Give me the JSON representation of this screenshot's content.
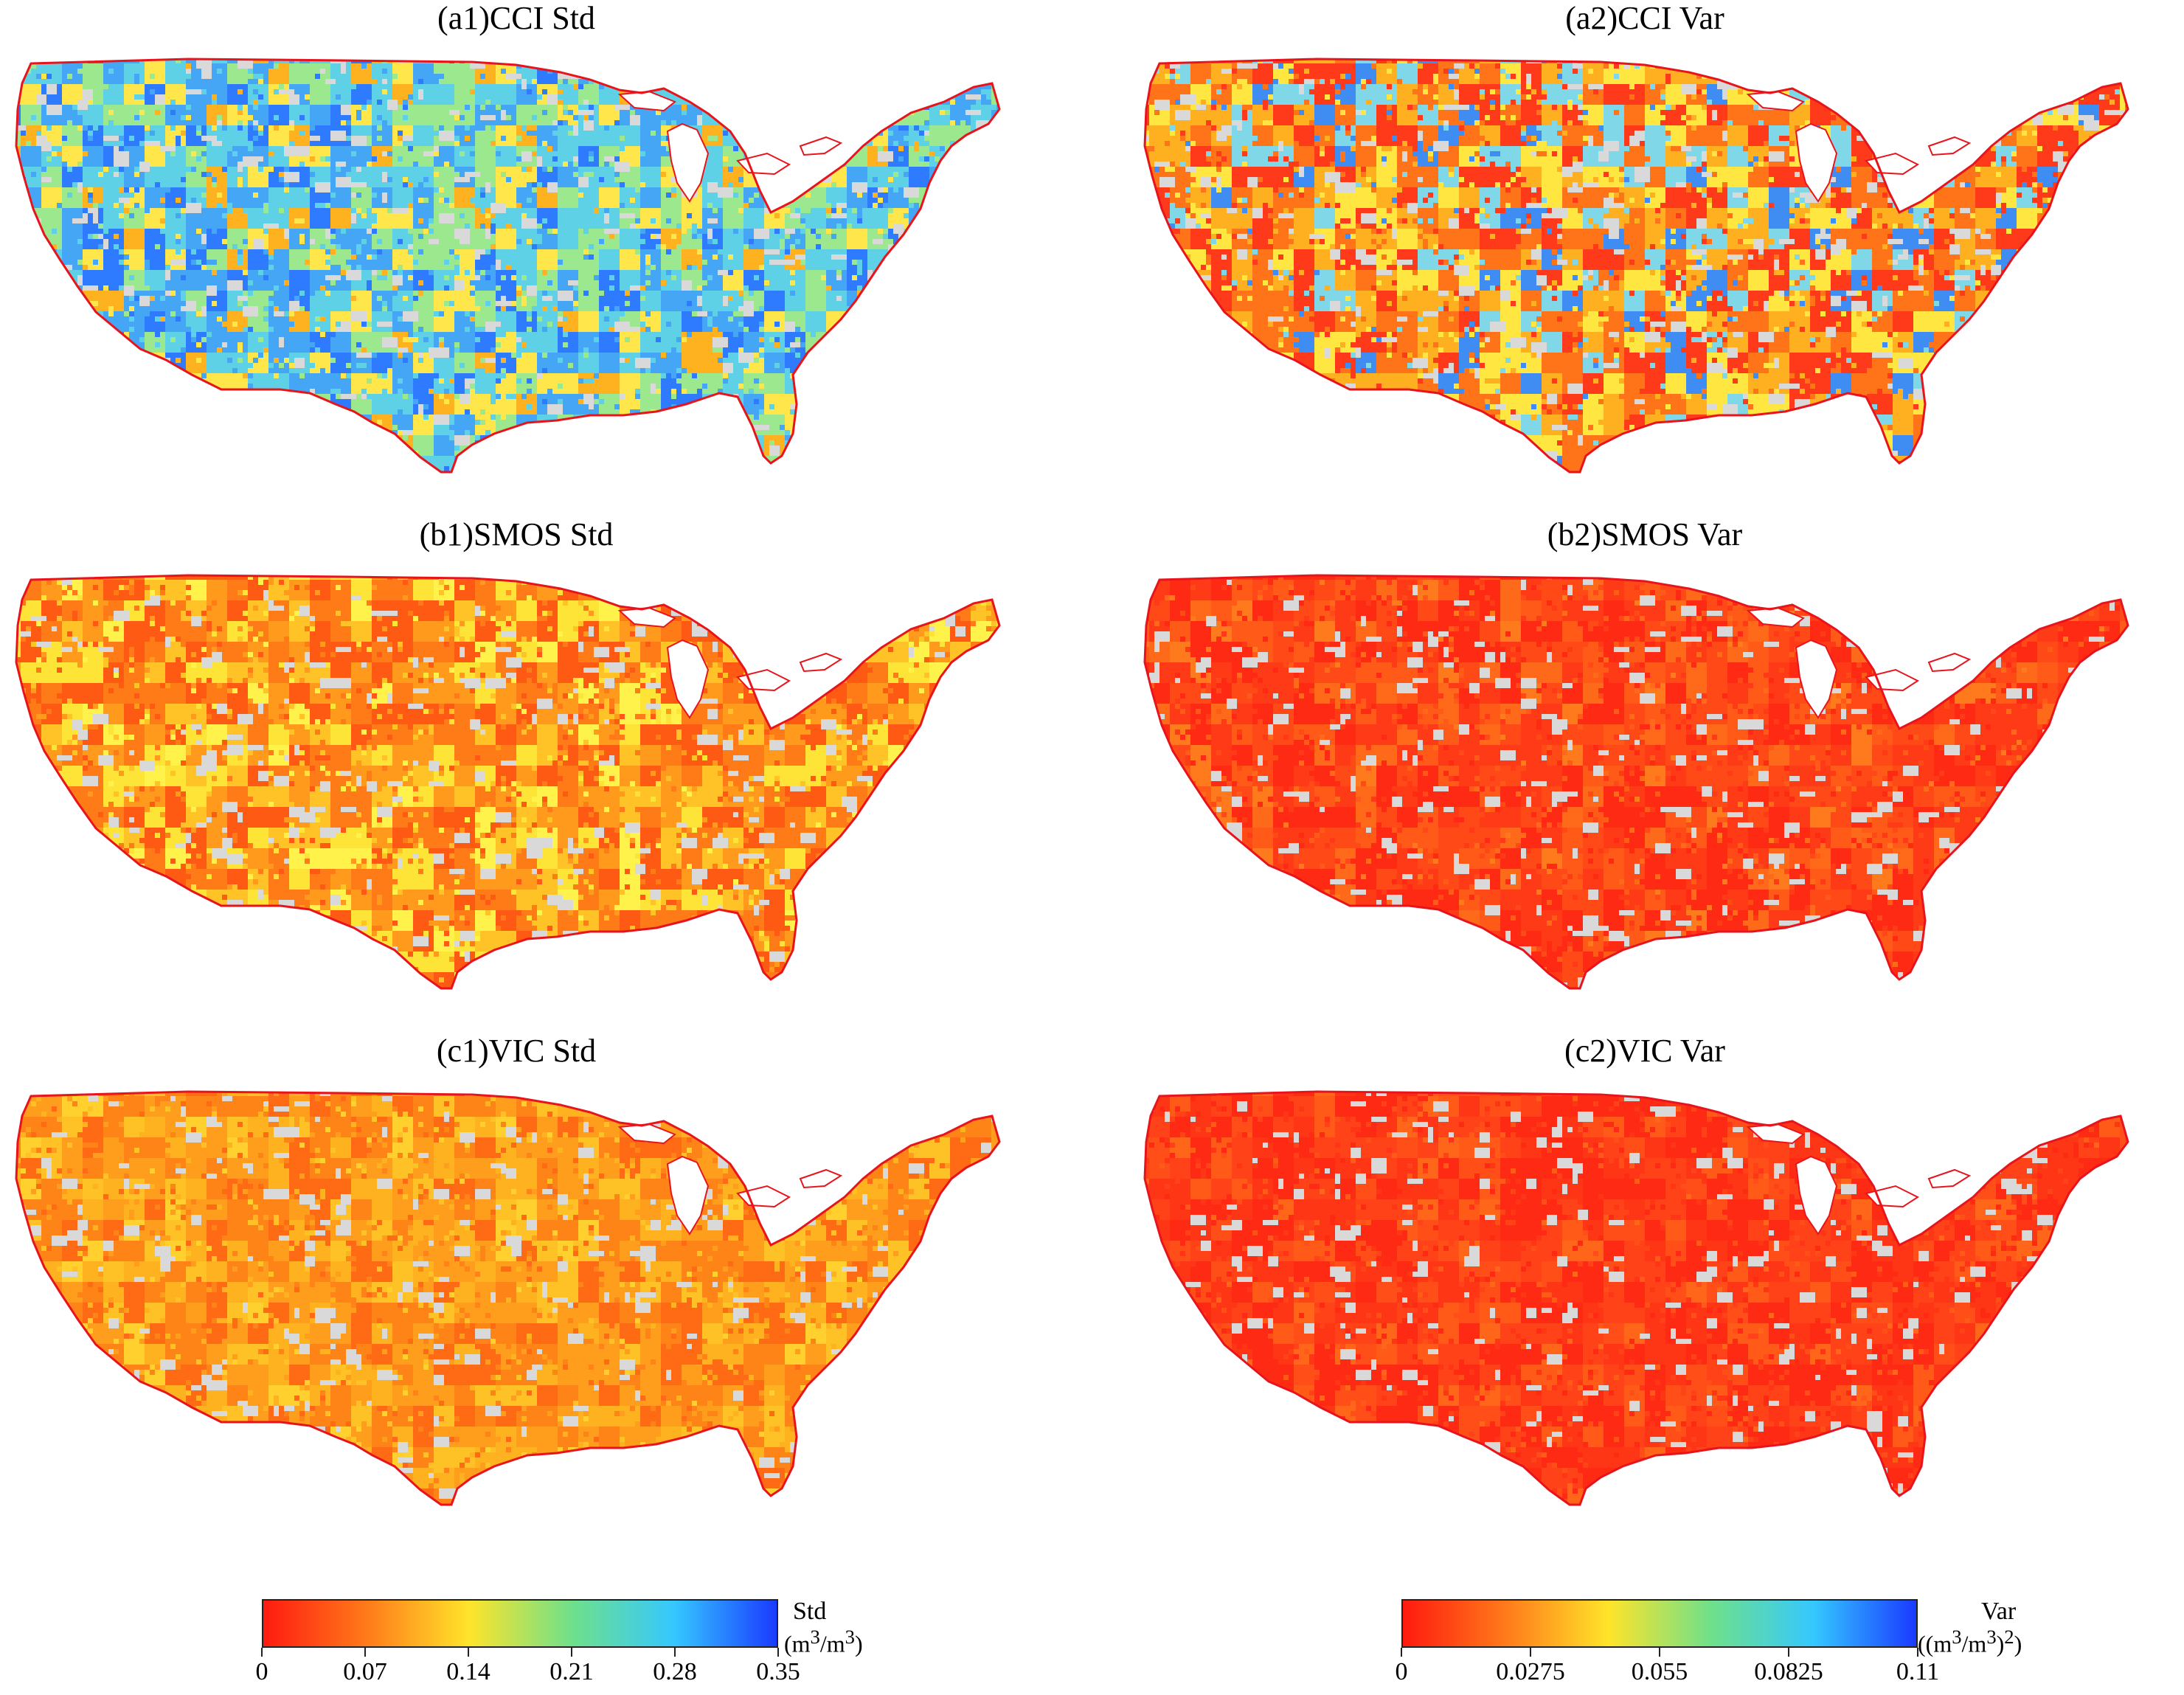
{
  "panels": [
    {
      "title": "(a1)CCI Std",
      "palette": [
        "#2e7bff",
        "#45a6f5",
        "#5fd1e6",
        "#9be88e",
        "#ffe64a",
        "#ffb21f"
      ],
      "weights": [
        0.1,
        0.22,
        0.28,
        0.18,
        0.14,
        0.08
      ]
    },
    {
      "title": "(a2)CCI Var",
      "palette": [
        "#ff3a1a",
        "#ff7418",
        "#ffb020",
        "#ffe640",
        "#7fd7e8",
        "#3f8cf2"
      ],
      "weights": [
        0.22,
        0.24,
        0.18,
        0.16,
        0.12,
        0.08
      ]
    },
    {
      "title": "(b1)SMOS Std",
      "palette": [
        "#ff5a14",
        "#ff7b18",
        "#ff9a1c",
        "#ffc227",
        "#ffe438",
        "#fff24a"
      ],
      "weights": [
        0.22,
        0.24,
        0.18,
        0.16,
        0.12,
        0.08
      ]
    },
    {
      "title": "(b2)SMOS Var",
      "palette": [
        "#ff2a14",
        "#ff3a16",
        "#ff4a18",
        "#ff5a18",
        "#ff6a1a",
        "#ff7a1c"
      ],
      "weights": [
        0.3,
        0.25,
        0.18,
        0.14,
        0.08,
        0.05
      ]
    },
    {
      "title": "(c1)VIC Std",
      "palette": [
        "#ff6a14",
        "#ff8418",
        "#ff9e1c",
        "#ffb21f",
        "#ffc226",
        "#ffd02e"
      ],
      "weights": [
        0.2,
        0.24,
        0.22,
        0.16,
        0.12,
        0.06
      ]
    },
    {
      "title": "(c2)VIC Var",
      "palette": [
        "#ff2a14",
        "#ff3616",
        "#ff4218",
        "#ff4e18",
        "#ff5a18",
        "#ff661a"
      ],
      "weights": [
        0.3,
        0.25,
        0.18,
        0.14,
        0.08,
        0.05
      ]
    }
  ],
  "colorbars": [
    {
      "title": "Std",
      "unit_html": "(m<sup>3</sup>/m<sup>3</sup>)",
      "ticks": [
        "0",
        "0.07",
        "0.14",
        "0.21",
        "0.28",
        "0.35"
      ]
    },
    {
      "title": "Var",
      "unit_html": "((m<sup>3</sup>/m<sup>3</sup>)<sup>2</sup>)",
      "ticks": [
        "0",
        "0.0275",
        "0.055",
        "0.0825",
        "0.11"
      ]
    }
  ],
  "colormap": [
    "#ff1a10",
    "#ff7a1a",
    "#ffe42a",
    "#6fe08a",
    "#35c8ff",
    "#1a3aff"
  ],
  "no_data_color": "#d9d9d9",
  "border_color": "#e8141c"
}
